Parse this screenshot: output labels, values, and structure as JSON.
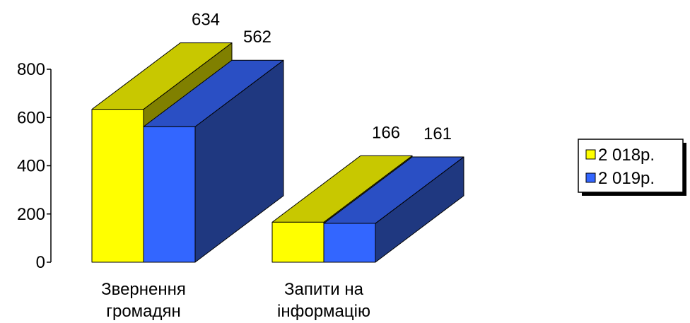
{
  "chart_data": {
    "type": "bar",
    "style": "3d-clustered",
    "categories": [
      [
        "Звернення",
        "громадян"
      ],
      [
        "Запити на",
        "інформацію"
      ]
    ],
    "series": [
      {
        "name": "2 018р.",
        "values": [
          634,
          166
        ],
        "color": "#ffff00",
        "top_color": "#c8c800",
        "side_color": "#808000"
      },
      {
        "name": "2 019р.",
        "values": [
          562,
          161
        ],
        "color": "#3366ff",
        "top_color": "#2a4fc4",
        "side_color": "#1f3880"
      }
    ],
    "y_ticks": [
      0,
      200,
      400,
      600,
      800
    ],
    "ylim": [
      0,
      800
    ],
    "title": "",
    "xlabel": "",
    "ylabel": "",
    "legend_position": "right",
    "grid": false
  }
}
